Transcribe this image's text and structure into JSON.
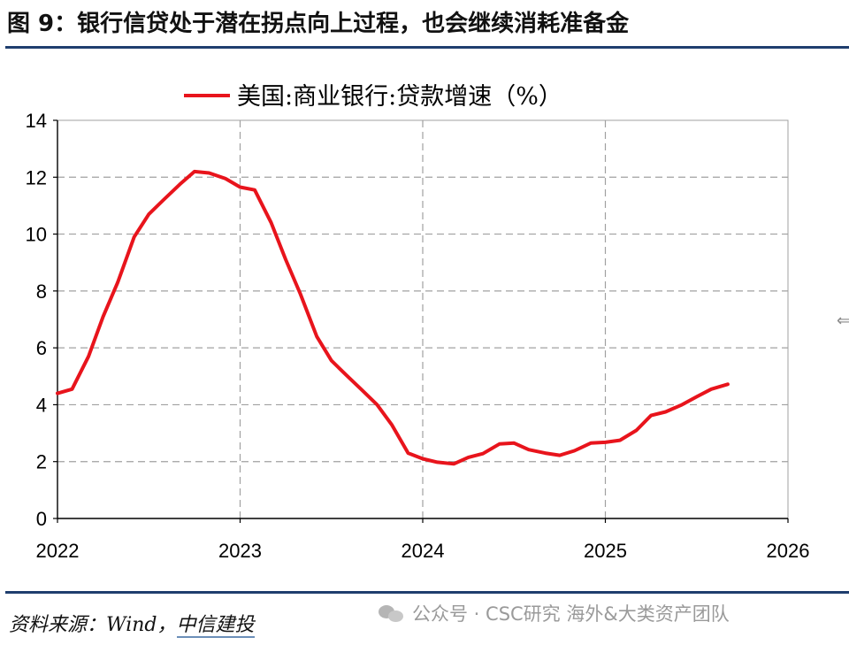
{
  "header": {
    "title": "图 9：银行信贷处于潜在拐点向上过程，也会继续消耗准备金"
  },
  "footer": {
    "source_prefix": "资料来源：Wind，",
    "source_brand": "中信建投",
    "watermark": "公众号 · CSC研究 海外&大类资产团队"
  },
  "colors": {
    "series": "#e8141c",
    "rule": "#1f3e6e",
    "grid": "#a0a0a0"
  },
  "chart_data": {
    "type": "line",
    "title": "",
    "xlabel": "",
    "ylabel": "",
    "xlim": [
      2022,
      2026
    ],
    "ylim": [
      0,
      14
    ],
    "x_ticks": [
      2022,
      2023,
      2024,
      2025,
      2026
    ],
    "y_ticks": [
      0,
      2,
      4,
      6,
      8,
      10,
      12,
      14
    ],
    "grid": true,
    "legend_position": "top-center",
    "series": [
      {
        "name": "美国:商业银行:贷款增速（%）",
        "color": "#e8141c",
        "x": [
          2022.0,
          2022.08,
          2022.17,
          2022.25,
          2022.33,
          2022.42,
          2022.5,
          2022.58,
          2022.67,
          2022.75,
          2022.83,
          2022.92,
          2023.0,
          2023.08,
          2023.17,
          2023.25,
          2023.33,
          2023.42,
          2023.5,
          2023.58,
          2023.67,
          2023.75,
          2023.83,
          2023.92,
          2024.0,
          2024.08,
          2024.17,
          2024.25,
          2024.33,
          2024.42,
          2024.5,
          2024.58,
          2024.67,
          2024.75,
          2024.83,
          2024.92,
          2025.0,
          2025.08,
          2025.17,
          2025.25,
          2025.33,
          2025.42,
          2025.5,
          2025.58,
          2025.67
        ],
        "values": [
          4.4,
          4.55,
          5.7,
          7.1,
          8.3,
          9.9,
          10.7,
          11.2,
          11.75,
          12.2,
          12.15,
          11.95,
          11.65,
          11.55,
          10.4,
          9.1,
          7.9,
          6.4,
          5.55,
          5.05,
          4.5,
          4.0,
          3.3,
          2.3,
          2.1,
          1.98,
          1.92,
          2.15,
          2.28,
          2.62,
          2.65,
          2.42,
          2.3,
          2.22,
          2.38,
          2.65,
          2.68,
          2.75,
          3.1,
          3.62,
          3.75,
          4.0,
          4.28,
          4.55,
          4.72
        ]
      }
    ]
  }
}
